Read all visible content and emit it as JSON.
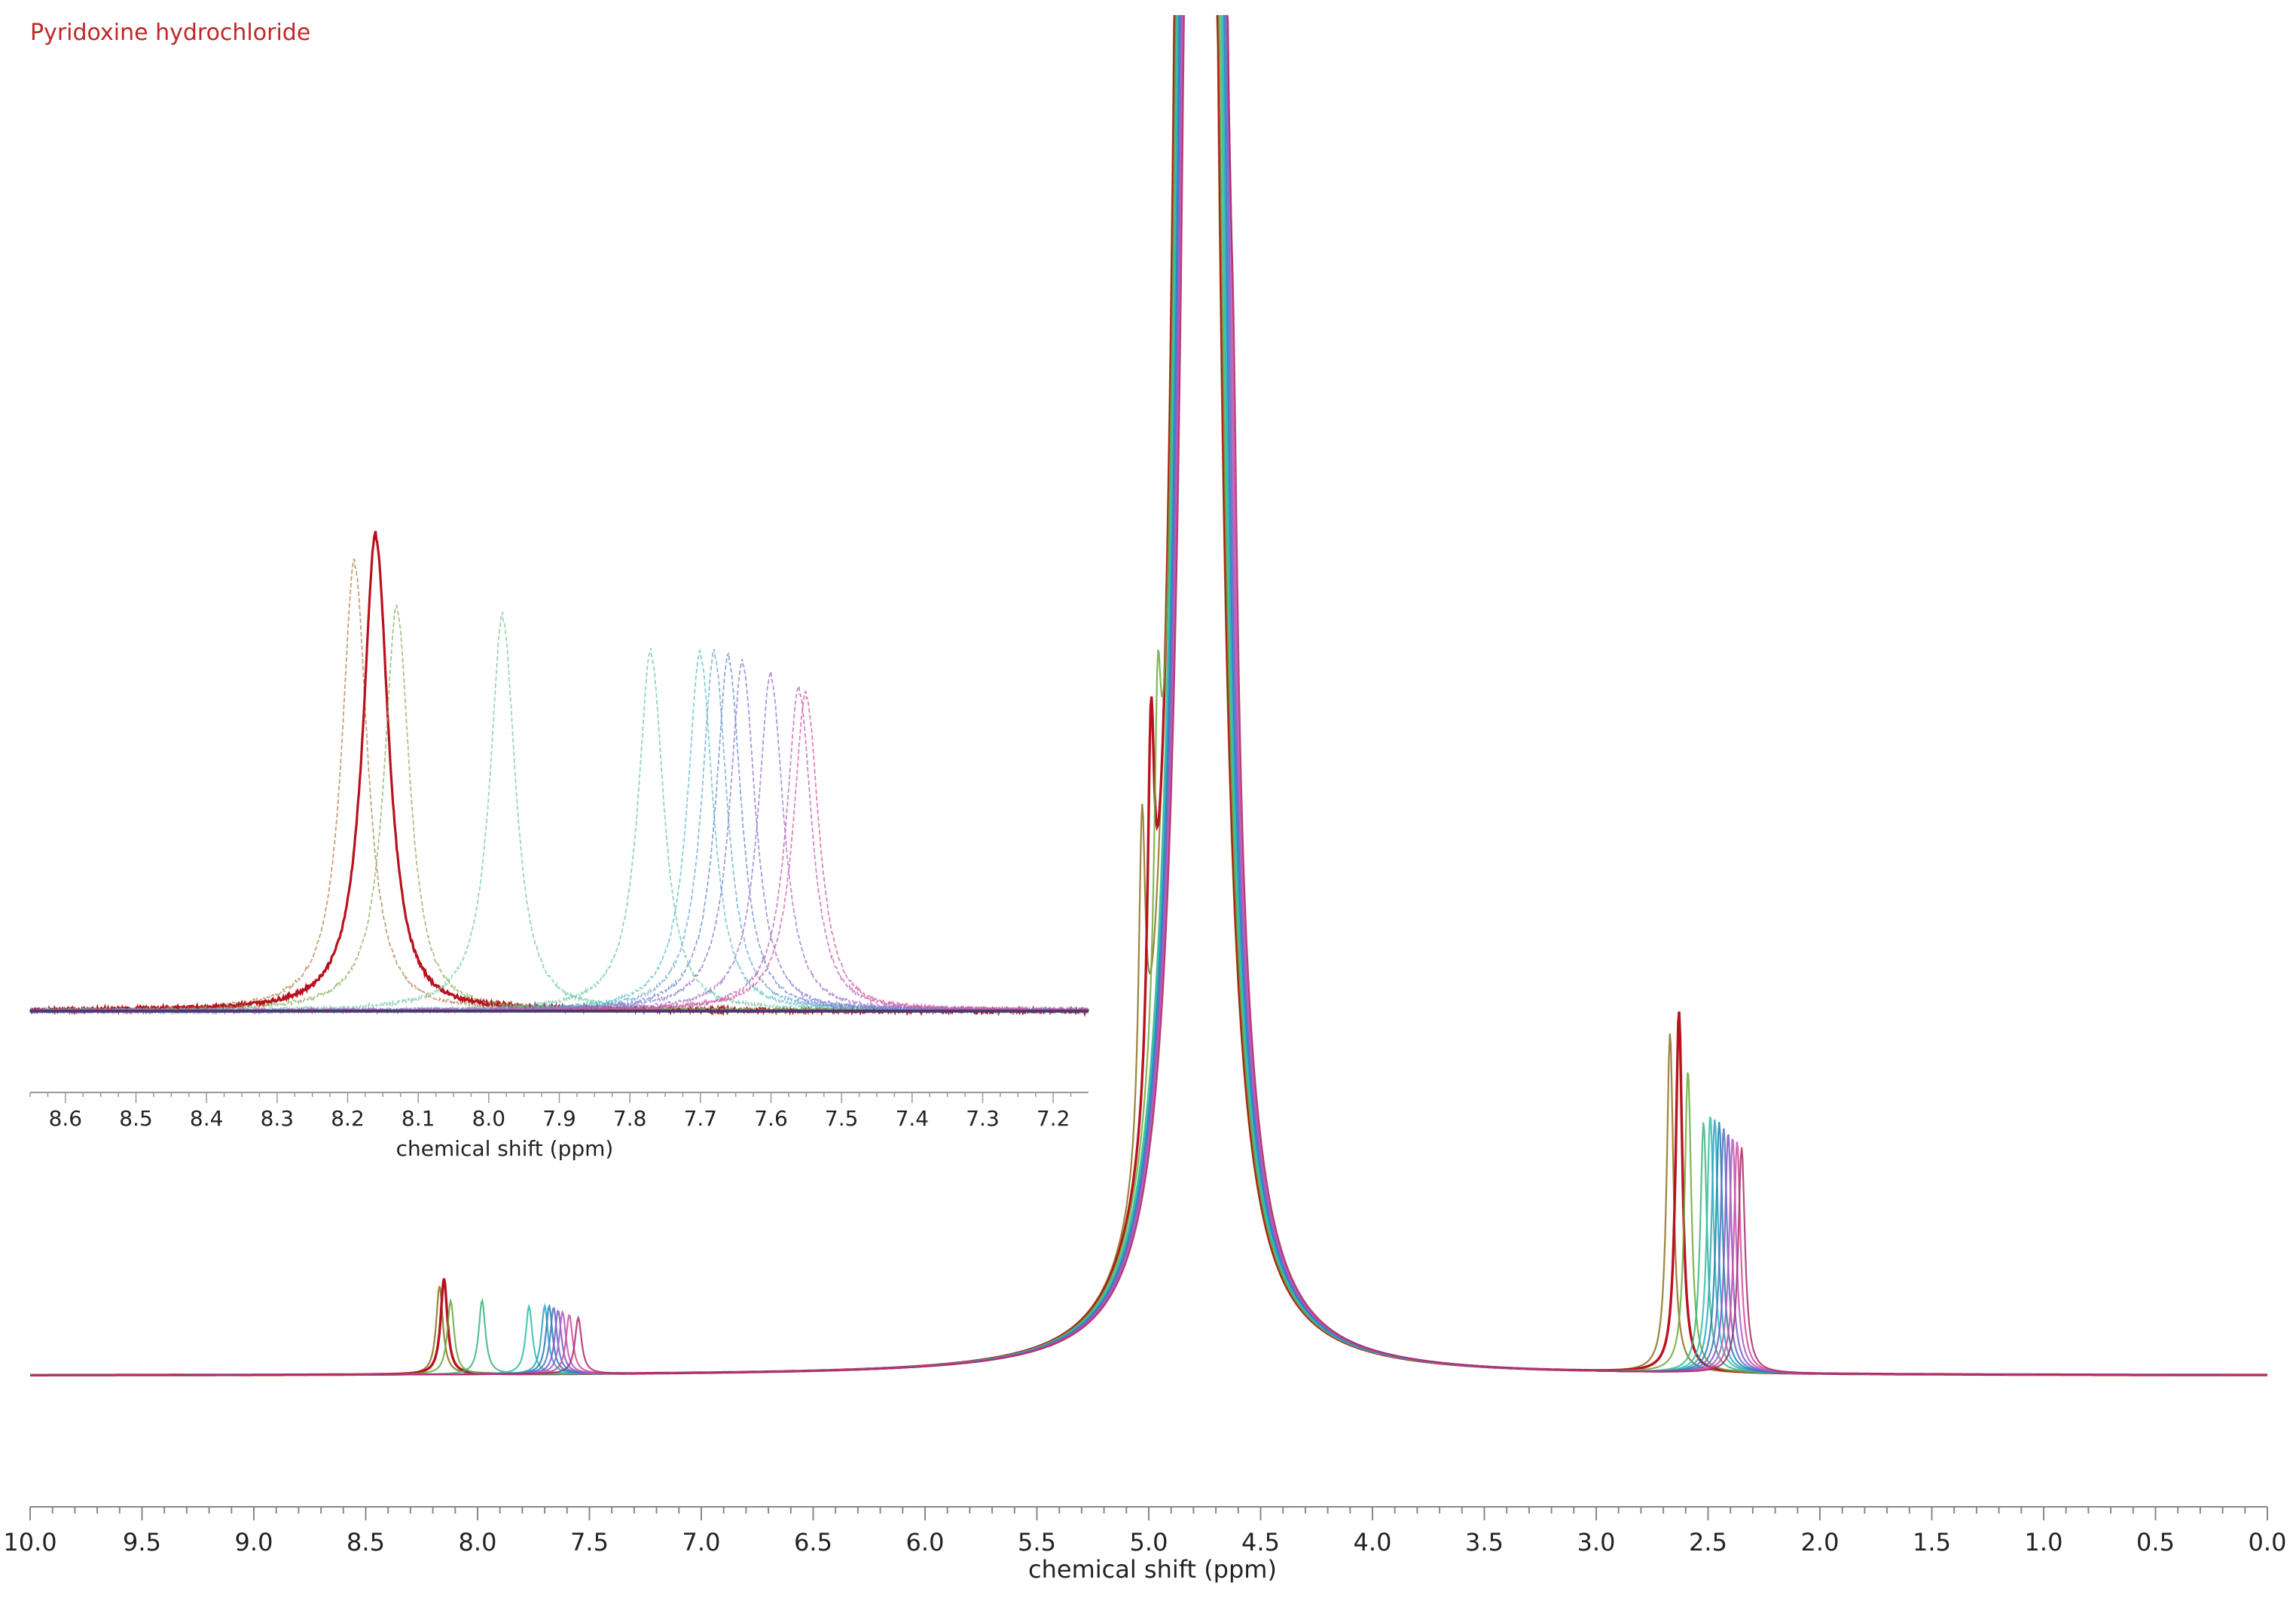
{
  "chart_data": [
    {
      "type": "line",
      "title": "Pyridoxine hydrochloride",
      "xlabel": "chemical shift (ppm)",
      "ylabel": "",
      "xlim": [
        10.0,
        0.0
      ],
      "x_reversed": true,
      "x_tick_labels": [
        "10.0",
        "9.5",
        "9.0",
        "8.5",
        "8.0",
        "7.5",
        "7.0",
        "6.5",
        "6.0",
        "5.5",
        "5.0",
        "4.5",
        "4.0",
        "3.5",
        "3.0",
        "2.5",
        "2.0",
        "1.5",
        "1.0",
        "0.5",
        "0.0"
      ],
      "legend": "none",
      "grid": false,
      "peak_width_ppm": 0.018,
      "solvent_peak": {
        "x": 4.79,
        "height": 100,
        "width_ppm": 0.035,
        "off_scale": true
      },
      "series": [
        {
          "color": "#8b6f1a",
          "peaks": [
            {
              "x": 8.17,
              "y": 6.0
            },
            {
              "x": 5.03,
              "y": 22.0
            },
            {
              "x": 2.67,
              "y": 23.0
            }
          ]
        },
        {
          "color": "#b8121f",
          "peaks": [
            {
              "x": 8.15,
              "y": 6.5
            },
            {
              "x": 4.99,
              "y": 23.0
            },
            {
              "x": 2.63,
              "y": 24.5
            }
          ]
        },
        {
          "color": "#6aaa3a",
          "peaks": [
            {
              "x": 8.12,
              "y": 5.0
            },
            {
              "x": 4.96,
              "y": 19.0
            },
            {
              "x": 2.59,
              "y": 20.5
            }
          ]
        },
        {
          "color": "#3bb67e",
          "peaks": [
            {
              "x": 7.98,
              "y": 5.0
            },
            {
              "x": 4.7,
              "y": 18.0
            },
            {
              "x": 2.52,
              "y": 17.0
            }
          ]
        },
        {
          "color": "#2ec0a8",
          "peaks": [
            {
              "x": 7.77,
              "y": 4.6
            },
            {
              "x": 4.69,
              "y": 17.5
            },
            {
              "x": 2.49,
              "y": 17.5
            }
          ]
        },
        {
          "color": "#29a5c6",
          "peaks": [
            {
              "x": 7.7,
              "y": 4.6
            },
            {
              "x": 4.68,
              "y": 17.0
            },
            {
              "x": 2.47,
              "y": 17.2
            }
          ]
        },
        {
          "color": "#1f7fb0",
          "peaks": [
            {
              "x": 7.68,
              "y": 4.6
            },
            {
              "x": 4.67,
              "y": 16.5
            },
            {
              "x": 2.45,
              "y": 17.0
            }
          ]
        },
        {
          "color": "#5470c8",
          "peaks": [
            {
              "x": 7.66,
              "y": 4.5
            },
            {
              "x": 4.66,
              "y": 16.0
            },
            {
              "x": 2.43,
              "y": 16.6
            }
          ]
        },
        {
          "color": "#7a5ac8",
          "peaks": [
            {
              "x": 7.64,
              "y": 4.3
            },
            {
              "x": 4.65,
              "y": 15.5
            },
            {
              "x": 2.41,
              "y": 16.3
            }
          ]
        },
        {
          "color": "#b05ac0",
          "peaks": [
            {
              "x": 7.62,
              "y": 4.2
            },
            {
              "x": 4.64,
              "y": 15.0
            },
            {
              "x": 2.39,
              "y": 16.0
            }
          ]
        },
        {
          "color": "#d04a9a",
          "peaks": [
            {
              "x": 7.59,
              "y": 4.0
            },
            {
              "x": 4.63,
              "y": 14.5
            },
            {
              "x": 2.37,
              "y": 15.7
            }
          ]
        },
        {
          "color": "#a82a6a",
          "peaks": [
            {
              "x": 7.55,
              "y": 3.8
            },
            {
              "x": 4.62,
              "y": 14.0
            },
            {
              "x": 2.35,
              "y": 15.3
            }
          ]
        }
      ]
    },
    {
      "type": "line",
      "title": "",
      "xlabel": "chemical shift (ppm)",
      "ylabel": "",
      "xlim": [
        8.65,
        7.15
      ],
      "x_reversed": true,
      "x_tick_labels": [
        "8.6",
        "8.5",
        "8.4",
        "8.3",
        "8.2",
        "8.1",
        "8.0",
        "7.9",
        "7.8",
        "7.7",
        "7.6",
        "7.5",
        "7.4",
        "7.3",
        "7.2"
      ],
      "legend": "none",
      "grid": false,
      "peak_width_ppm": 0.022,
      "series": [
        {
          "color": "#b08050",
          "peaks": [
            {
              "x": 8.19,
              "y": 100
            }
          ]
        },
        {
          "color": "#b8121f",
          "peaks": [
            {
              "x": 8.16,
              "y": 106
            }
          ]
        },
        {
          "color": "#8ab060",
          "peaks": [
            {
              "x": 8.13,
              "y": 90
            }
          ]
        },
        {
          "color": "#7cc8a0",
          "peaks": [
            {
              "x": 7.98,
              "y": 88
            }
          ]
        },
        {
          "color": "#6cc8a8",
          "peaks": [
            {
              "x": 7.77,
              "y": 80
            }
          ]
        },
        {
          "color": "#5cc0c8",
          "peaks": [
            {
              "x": 7.7,
              "y": 80
            }
          ]
        },
        {
          "color": "#6aa8d0",
          "peaks": [
            {
              "x": 7.68,
              "y": 80
            }
          ]
        },
        {
          "color": "#6a88d0",
          "peaks": [
            {
              "x": 7.66,
              "y": 79
            }
          ]
        },
        {
          "color": "#8a78d0",
          "peaks": [
            {
              "x": 7.64,
              "y": 78
            }
          ]
        },
        {
          "color": "#a070c8",
          "peaks": [
            {
              "x": 7.6,
              "y": 75
            }
          ]
        },
        {
          "color": "#c060b0",
          "peaks": [
            {
              "x": 7.56,
              "y": 72
            }
          ]
        },
        {
          "color": "#d85aa0",
          "peaks": [
            {
              "x": 7.55,
              "y": 71
            }
          ]
        }
      ]
    }
  ]
}
